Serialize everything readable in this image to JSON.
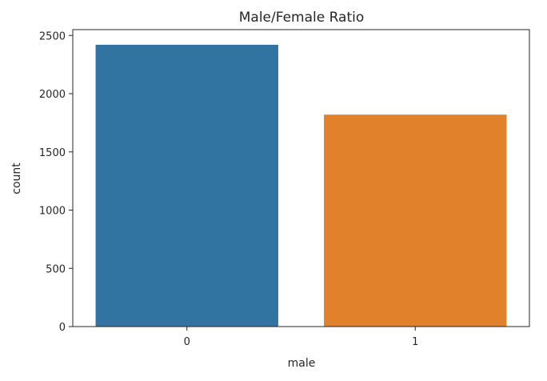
{
  "chart_data": {
    "type": "bar",
    "title": "Male/Female Ratio",
    "xlabel": "male",
    "ylabel": "count",
    "categories": [
      "0",
      "1"
    ],
    "values": [
      2420,
      1820
    ],
    "colors": [
      "#3274a1",
      "#e1812c"
    ],
    "ylim": [
      0,
      2550
    ],
    "yticks": [
      0,
      500,
      1000,
      1500,
      2000,
      2500
    ],
    "grid": false,
    "legend": "none"
  }
}
